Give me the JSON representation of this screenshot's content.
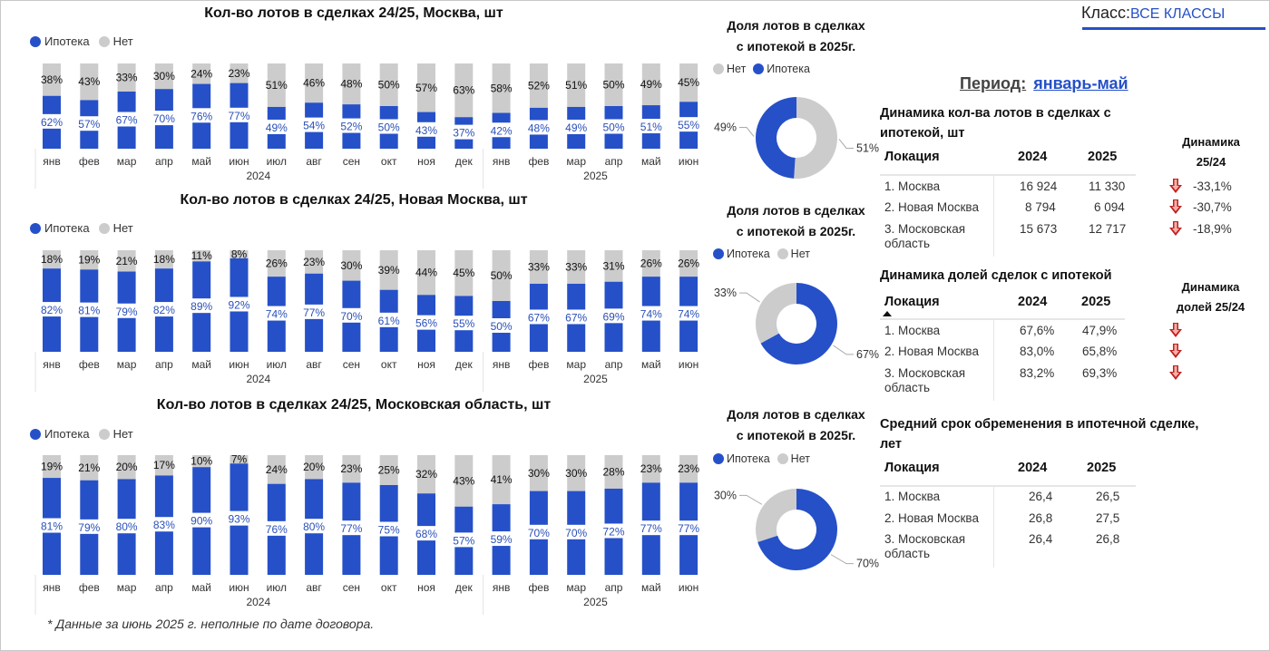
{
  "header": {
    "class_label": "Класс:",
    "class_value": "ВСЕ КЛАССЫ",
    "period_label": "Период:",
    "period_value": "январь-май"
  },
  "colors": {
    "mortgage": "#2550c8",
    "no": "#cccccc",
    "label_blue": "#2b50b8",
    "arrow_red": "#c0201e"
  },
  "legend": {
    "mortgage": "Ипотека",
    "no": "Нет"
  },
  "chart_data": [
    {
      "type": "bar",
      "stacked": true,
      "title": "Кол-во лотов в сделках 24/25, Москва, шт",
      "categories": [
        "янв",
        "фев",
        "мар",
        "апр",
        "май",
        "июн",
        "июл",
        "авг",
        "сен",
        "окт",
        "ноя",
        "дек",
        "янв",
        "фев",
        "мар",
        "апр",
        "май",
        "июн"
      ],
      "year_groups": [
        {
          "label": "2024",
          "count": 12
        },
        {
          "label": "2025",
          "count": 6
        }
      ],
      "series": [
        {
          "name": "Ипотека",
          "values": [
            62,
            57,
            67,
            70,
            76,
            77,
            49,
            54,
            52,
            50,
            43,
            37,
            42,
            48,
            49,
            50,
            51,
            55
          ],
          "labels": [
            "62%",
            "57%",
            "67%",
            "70%",
            "76%",
            "77%",
            "49%",
            "54%",
            "52%",
            "50%",
            "43%",
            "37%",
            "42%",
            "48%",
            "49%",
            "50%",
            "51%",
            "55%"
          ]
        },
        {
          "name": "Нет",
          "values": [
            38,
            43,
            33,
            30,
            24,
            23,
            51,
            46,
            48,
            50,
            57,
            63,
            58,
            52,
            51,
            50,
            49,
            45
          ],
          "labels": [
            "38%",
            "43%",
            "33%",
            "30%",
            "24%",
            "23%",
            "51%",
            "46%",
            "48%",
            "50%",
            "57%",
            "63%",
            "58%",
            "52%",
            "51%",
            "50%",
            "49%",
            "45%"
          ]
        }
      ],
      "ylim": [
        0,
        100
      ],
      "legend": "top-left"
    },
    {
      "type": "bar",
      "stacked": true,
      "title": "Кол-во лотов в сделках 24/25, Новая Москва, шт",
      "categories": [
        "янв",
        "фев",
        "мар",
        "апр",
        "май",
        "июн",
        "июл",
        "авг",
        "сен",
        "окт",
        "ноя",
        "дек",
        "янв",
        "фев",
        "мар",
        "апр",
        "май",
        "июн"
      ],
      "year_groups": [
        {
          "label": "2024",
          "count": 12
        },
        {
          "label": "2025",
          "count": 6
        }
      ],
      "series": [
        {
          "name": "Ипотека",
          "values": [
            82,
            81,
            79,
            82,
            89,
            92,
            74,
            77,
            70,
            61,
            56,
            55,
            50,
            67,
            67,
            69,
            74,
            74
          ],
          "labels": [
            "82%",
            "81%",
            "79%",
            "82%",
            "89%",
            "92%",
            "74%",
            "77%",
            "70%",
            "61%",
            "56%",
            "55%",
            "50%",
            "67%",
            "67%",
            "69%",
            "74%",
            "74%"
          ]
        },
        {
          "name": "Нет",
          "values": [
            18,
            19,
            21,
            18,
            11,
            8,
            26,
            23,
            30,
            39,
            44,
            45,
            50,
            33,
            33,
            31,
            26,
            26
          ],
          "labels": [
            "18%",
            "19%",
            "21%",
            "18%",
            "11%",
            "8%",
            "26%",
            "23%",
            "30%",
            "39%",
            "44%",
            "45%",
            "50%",
            "33%",
            "33%",
            "31%",
            "26%",
            "26%"
          ]
        }
      ],
      "ylim": [
        0,
        100
      ],
      "legend": "top-left"
    },
    {
      "type": "bar",
      "stacked": true,
      "title": "Кол-во лотов в сделках 24/25, Московская область, шт",
      "categories": [
        "янв",
        "фев",
        "мар",
        "апр",
        "май",
        "июн",
        "июл",
        "авг",
        "сен",
        "окт",
        "ноя",
        "дек",
        "янв",
        "фев",
        "мар",
        "апр",
        "май",
        "июн"
      ],
      "year_groups": [
        {
          "label": "2024",
          "count": 12
        },
        {
          "label": "2025",
          "count": 6
        }
      ],
      "series": [
        {
          "name": "Ипотека",
          "values": [
            81,
            79,
            80,
            83,
            90,
            93,
            76,
            80,
            77,
            75,
            68,
            57,
            59,
            70,
            70,
            72,
            77,
            77
          ],
          "labels": [
            "81%",
            "79%",
            "80%",
            "83%",
            "90%",
            "93%",
            "76%",
            "80%",
            "77%",
            "75%",
            "68%",
            "57%",
            "59%",
            "70%",
            "70%",
            "72%",
            "77%",
            "77%"
          ]
        },
        {
          "name": "Нет",
          "values": [
            19,
            21,
            20,
            17,
            10,
            7,
            24,
            20,
            23,
            25,
            32,
            43,
            41,
            30,
            30,
            28,
            23,
            23
          ],
          "labels": [
            "19%",
            "21%",
            "20%",
            "17%",
            "10%",
            "7%",
            "24%",
            "20%",
            "23%",
            "25%",
            "32%",
            "43%",
            "41%",
            "30%",
            "30%",
            "28%",
            "23%",
            "23%"
          ]
        }
      ],
      "ylim": [
        0,
        100
      ],
      "legend": "top-left"
    },
    {
      "type": "pie",
      "donut": true,
      "title": "Доля лотов в сделках с ипотекой в 2025г.",
      "legend_order": [
        "Нет",
        "Ипотека"
      ],
      "slices": [
        {
          "name": "Нет",
          "value": 51,
          "label": "51%"
        },
        {
          "name": "Ипотека",
          "value": 49,
          "label": "49%"
        }
      ]
    },
    {
      "type": "pie",
      "donut": true,
      "title": "Доля лотов в сделках с ипотекой в 2025г.",
      "legend_order": [
        "Ипотека",
        "Нет"
      ],
      "slices": [
        {
          "name": "Ипотека",
          "value": 67,
          "label": "67%"
        },
        {
          "name": "Нет",
          "value": 33,
          "label": "33%"
        }
      ]
    },
    {
      "type": "pie",
      "donut": true,
      "title": "Доля лотов в сделках с ипотекой в 2025г.",
      "legend_order": [
        "Ипотека",
        "Нет"
      ],
      "slices": [
        {
          "name": "Ипотека",
          "value": 70,
          "label": "70%"
        },
        {
          "name": "Нет",
          "value": 30,
          "label": "30%"
        }
      ]
    }
  ],
  "donut_titles": [
    {
      "line1": "Доля лотов в сделках",
      "line2": "с ипотекой в 2025г."
    },
    {
      "line1": "Доля лотов в сделках",
      "line2": "с ипотекой в 2025г."
    },
    {
      "line1": "Доля лотов в сделках",
      "line2": "с ипотекой в 2025г."
    }
  ],
  "tables": {
    "counts": {
      "title_line1": "Динамика кол-ва лотов в сделках с",
      "title_line2": "ипотекой, шт",
      "headers": [
        "Локация",
        "2024",
        "2025"
      ],
      "dyn_header_line1": "Динамика",
      "dyn_header_line2": "25/24",
      "rows": [
        {
          "loc1": "1. Москва",
          "loc2": "",
          "v2024": "16 924",
          "v2025": "11 330",
          "dyn": "-33,1%"
        },
        {
          "loc1": "2. Новая Москва",
          "loc2": "",
          "v2024": "8 794",
          "v2025": "6 094",
          "dyn": "-30,7%"
        },
        {
          "loc1": "3. Московская",
          "loc2": "область",
          "v2024": "15 673",
          "v2025": "12 717",
          "dyn": "-18,9%"
        }
      ]
    },
    "shares": {
      "title": "Динамика долей сделок с ипотекой",
      "headers": [
        "Локация",
        "2024",
        "2025"
      ],
      "dyn_header_line1": "Динамика",
      "dyn_header_line2": "долей 25/24",
      "rows": [
        {
          "loc1": "1. Москва",
          "loc2": "",
          "v2024": "67,6%",
          "v2025": "47,9%"
        },
        {
          "loc1": "2. Новая Москва",
          "loc2": "",
          "v2024": "83,0%",
          "v2025": "65,8%"
        },
        {
          "loc1": "3. Московская",
          "loc2": "область",
          "v2024": "83,2%",
          "v2025": "69,3%"
        }
      ]
    },
    "term": {
      "title_line1": "Средний срок обременения в ипотечной сделке,",
      "title_line2": "лет",
      "headers": [
        "Локация",
        "2024",
        "2025"
      ],
      "rows": [
        {
          "loc1": "1. Москва",
          "loc2": "",
          "v2024": "26,4",
          "v2025": "26,5"
        },
        {
          "loc1": "2. Новая Москва",
          "loc2": "",
          "v2024": "26,8",
          "v2025": "27,5"
        },
        {
          "loc1": "3. Московская",
          "loc2": "область",
          "v2024": "26,4",
          "v2025": "26,8"
        }
      ]
    }
  },
  "footnote": "* Данные за июнь 2025 г. неполные по дате договора."
}
